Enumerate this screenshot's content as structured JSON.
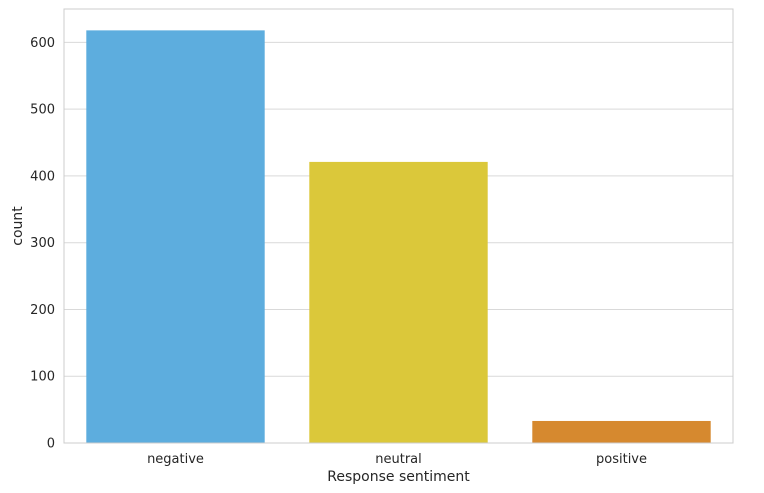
{
  "chart_data": {
    "type": "bar",
    "categories": [
      "negative",
      "neutral",
      "positive"
    ],
    "values": [
      618,
      421,
      33
    ],
    "colors": [
      "#5DADDE",
      "#DBC83A",
      "#D6892F"
    ],
    "xlabel": "Response sentiment",
    "ylabel": "count",
    "ylim": [
      0,
      650
    ],
    "yticks": [
      0,
      100,
      200,
      300,
      400,
      500,
      600
    ],
    "grid": true,
    "grid_color": "#d9d9d9",
    "frame_color": "#cccccc"
  }
}
